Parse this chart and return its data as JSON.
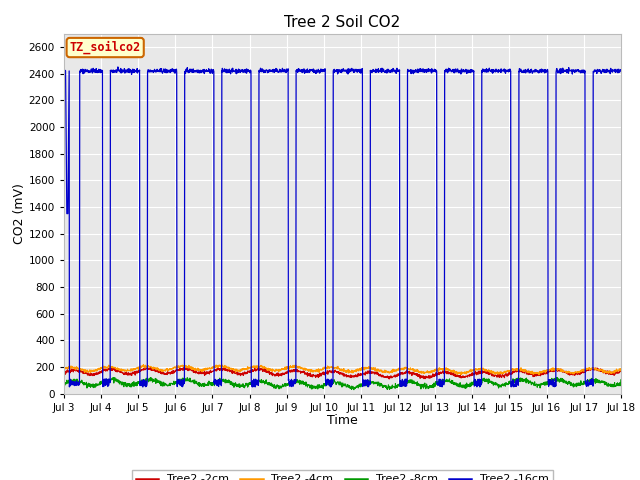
{
  "title": "Tree 2 Soil CO2",
  "xlabel": "Time",
  "ylabel": "CO2 (mV)",
  "ylim": [
    0,
    2700
  ],
  "yticks": [
    0,
    200,
    400,
    600,
    800,
    1000,
    1200,
    1400,
    1600,
    1800,
    2000,
    2200,
    2400,
    2600
  ],
  "xtick_labels": [
    "Jul 3",
    "Jul 4",
    "Jul 5",
    "Jul 6",
    "Jul 7",
    "Jul 8",
    "Jul 9",
    "Jul 10",
    "Jul 11",
    "Jul 12",
    "Jul 13",
    "Jul 14",
    "Jul 15",
    "Jul 16",
    "Jul 17",
    "Jul 18"
  ],
  "colors": {
    "red": "#cc0000",
    "orange": "#ff9900",
    "green": "#009900",
    "blue": "#0000cc"
  },
  "bg_color": "#e8e8e8",
  "fig_color": "#ffffff",
  "label_box_color": "#ffffcc",
  "label_box_edge": "#cc6600",
  "label_text": "TZ_soilco2",
  "legend_labels": [
    "Tree2 -2cm",
    "Tree2 -4cm",
    "Tree2 -8cm",
    "Tree2 -16cm"
  ],
  "blue_high": 2420,
  "red_base": 155,
  "orange_base": 180,
  "green_base": 75
}
